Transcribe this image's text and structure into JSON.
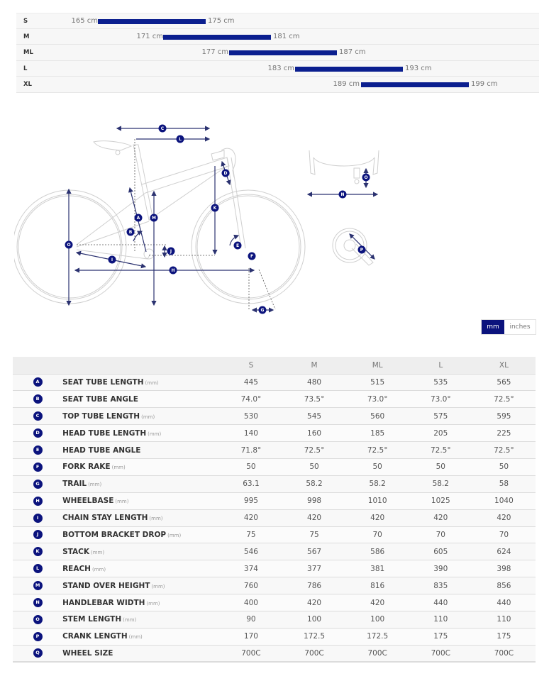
{
  "size_range": {
    "bar_color": "#0b1f8f",
    "rows": [
      {
        "size": "S",
        "min": "165 cm",
        "max": "175 cm"
      },
      {
        "size": "M",
        "min": "171 cm",
        "max": "181 cm"
      },
      {
        "size": "ML",
        "min": "177 cm",
        "max": "187 cm"
      },
      {
        "size": "L",
        "min": "183 cm",
        "max": "193 cm"
      },
      {
        "size": "XL",
        "min": "189 cm",
        "max": "199 cm"
      }
    ]
  },
  "diagram": {
    "labels": [
      "A",
      "B",
      "C",
      "D",
      "E",
      "F",
      "G",
      "H",
      "I",
      "J",
      "K",
      "L",
      "M",
      "N",
      "O",
      "P"
    ],
    "line_color": "#c9c9c9",
    "accent_color": "#0b137d"
  },
  "unit_toggle": {
    "options": [
      "mm",
      "inches"
    ],
    "selected": "mm"
  },
  "geometry": {
    "columns": [
      "",
      "",
      "S",
      "M",
      "ML",
      "L",
      "XL"
    ],
    "rows": [
      {
        "letter": "A",
        "name": "SEAT TUBE LENGTH",
        "unit": "(mm)",
        "values": [
          "445",
          "480",
          "515",
          "535",
          "565"
        ]
      },
      {
        "letter": "B",
        "name": "SEAT TUBE ANGLE",
        "unit": "",
        "values": [
          "74.0°",
          "73.5°",
          "73.0°",
          "73.0°",
          "72.5°"
        ]
      },
      {
        "letter": "C",
        "name": "TOP TUBE LENGTH",
        "unit": "(mm)",
        "values": [
          "530",
          "545",
          "560",
          "575",
          "595"
        ]
      },
      {
        "letter": "D",
        "name": "HEAD TUBE LENGTH",
        "unit": "(mm)",
        "values": [
          "140",
          "160",
          "185",
          "205",
          "225"
        ]
      },
      {
        "letter": "E",
        "name": "HEAD TUBE ANGLE",
        "unit": "",
        "values": [
          "71.8°",
          "72.5°",
          "72.5°",
          "72.5°",
          "72.5°"
        ]
      },
      {
        "letter": "F",
        "name": "FORK RAKE",
        "unit": "(mm)",
        "values": [
          "50",
          "50",
          "50",
          "50",
          "50"
        ]
      },
      {
        "letter": "G",
        "name": "TRAIL",
        "unit": "(mm)",
        "values": [
          "63.1",
          "58.2",
          "58.2",
          "58.2",
          "58"
        ]
      },
      {
        "letter": "H",
        "name": "WHEELBASE",
        "unit": "(mm)",
        "values": [
          "995",
          "998",
          "1010",
          "1025",
          "1040"
        ]
      },
      {
        "letter": "I",
        "name": "CHAIN STAY LENGTH",
        "unit": "(mm)",
        "values": [
          "420",
          "420",
          "420",
          "420",
          "420"
        ]
      },
      {
        "letter": "J",
        "name": "BOTTOM BRACKET DROP",
        "unit": "(mm)",
        "values": [
          "75",
          "75",
          "70",
          "70",
          "70"
        ]
      },
      {
        "letter": "K",
        "name": "STACK",
        "unit": "(mm)",
        "values": [
          "546",
          "567",
          "586",
          "605",
          "624"
        ]
      },
      {
        "letter": "L",
        "name": "REACH",
        "unit": "(mm)",
        "values": [
          "374",
          "377",
          "381",
          "390",
          "398"
        ]
      },
      {
        "letter": "M",
        "name": "STAND OVER HEIGHT",
        "unit": "(mm)",
        "values": [
          "760",
          "786",
          "816",
          "835",
          "856"
        ]
      },
      {
        "letter": "N",
        "name": "HANDLEBAR WIDTH",
        "unit": "(mm)",
        "values": [
          "400",
          "420",
          "420",
          "440",
          "440"
        ]
      },
      {
        "letter": "O",
        "name": "STEM LENGTH",
        "unit": "(mm)",
        "values": [
          "90",
          "100",
          "100",
          "110",
          "110"
        ]
      },
      {
        "letter": "P",
        "name": "CRANK LENGTH",
        "unit": "(mm)",
        "values": [
          "170",
          "172.5",
          "172.5",
          "175",
          "175"
        ]
      },
      {
        "letter": "Q",
        "name": "WHEEL SIZE",
        "unit": "",
        "values": [
          "700C",
          "700C",
          "700C",
          "700C",
          "700C"
        ]
      }
    ]
  }
}
